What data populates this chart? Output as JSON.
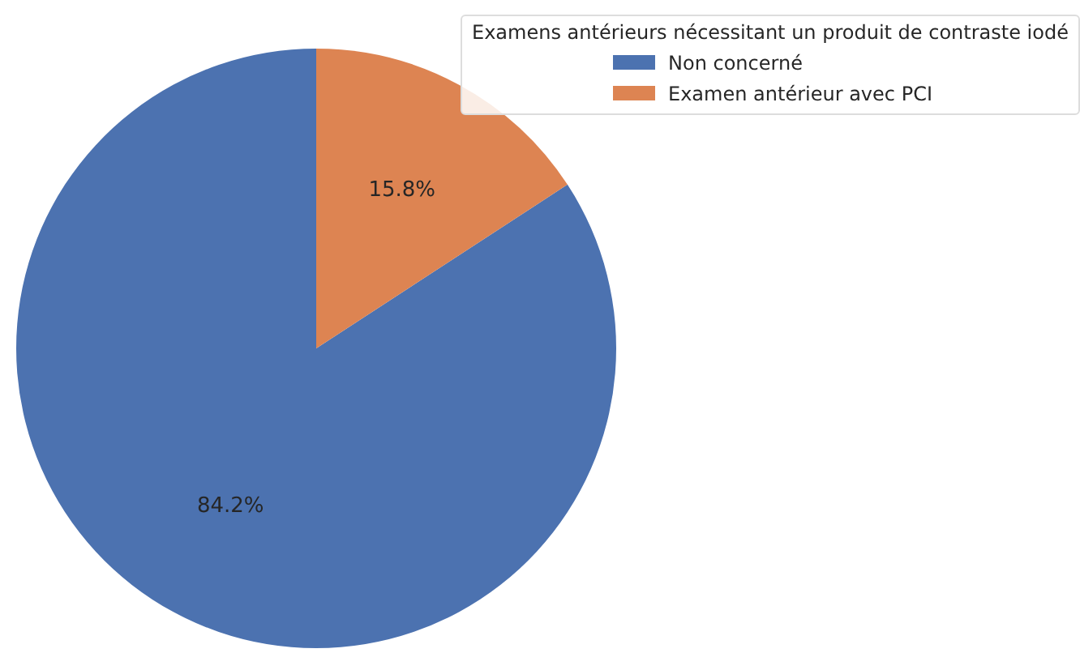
{
  "chart_data": {
    "type": "pie",
    "legend_title": "Examens antérieurs nécessitant un produit de contraste iodé",
    "categories": [
      "Non concerné",
      "Examen antérieur avec PCI"
    ],
    "values": [
      84.2,
      15.8
    ],
    "colors": [
      "#4c72b0",
      "#dd8452"
    ],
    "legend": "top right",
    "value_labels": [
      "84.2%",
      "15.8%"
    ]
  }
}
